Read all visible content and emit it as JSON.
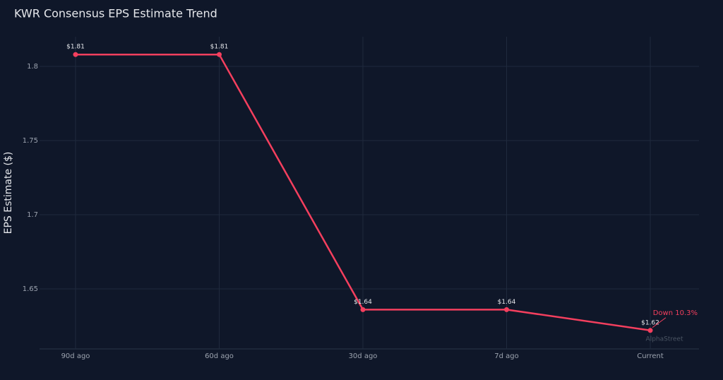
{
  "chart_data": {
    "type": "line",
    "title": "KWR Consensus EPS Estimate Trend",
    "y_label": "EPS Estimate ($)",
    "categories": [
      "90d ago",
      "60d ago",
      "30d ago",
      "7d ago",
      "Current"
    ],
    "series": [
      {
        "name": "EPS Estimate",
        "color": "#f43f5e",
        "values": [
          1.808,
          1.808,
          1.636,
          1.636,
          1.622
        ],
        "value_labels": [
          "$1.81",
          "$1.81",
          "$1.64",
          "$1.64",
          "$1.62"
        ]
      }
    ],
    "ylim": [
      1.6095,
      1.82
    ],
    "yticks": [
      1.65,
      1.7,
      1.75,
      1.8
    ],
    "grid": true,
    "annotation": "Down 10.3%",
    "watermark": "AlphaStreet"
  }
}
